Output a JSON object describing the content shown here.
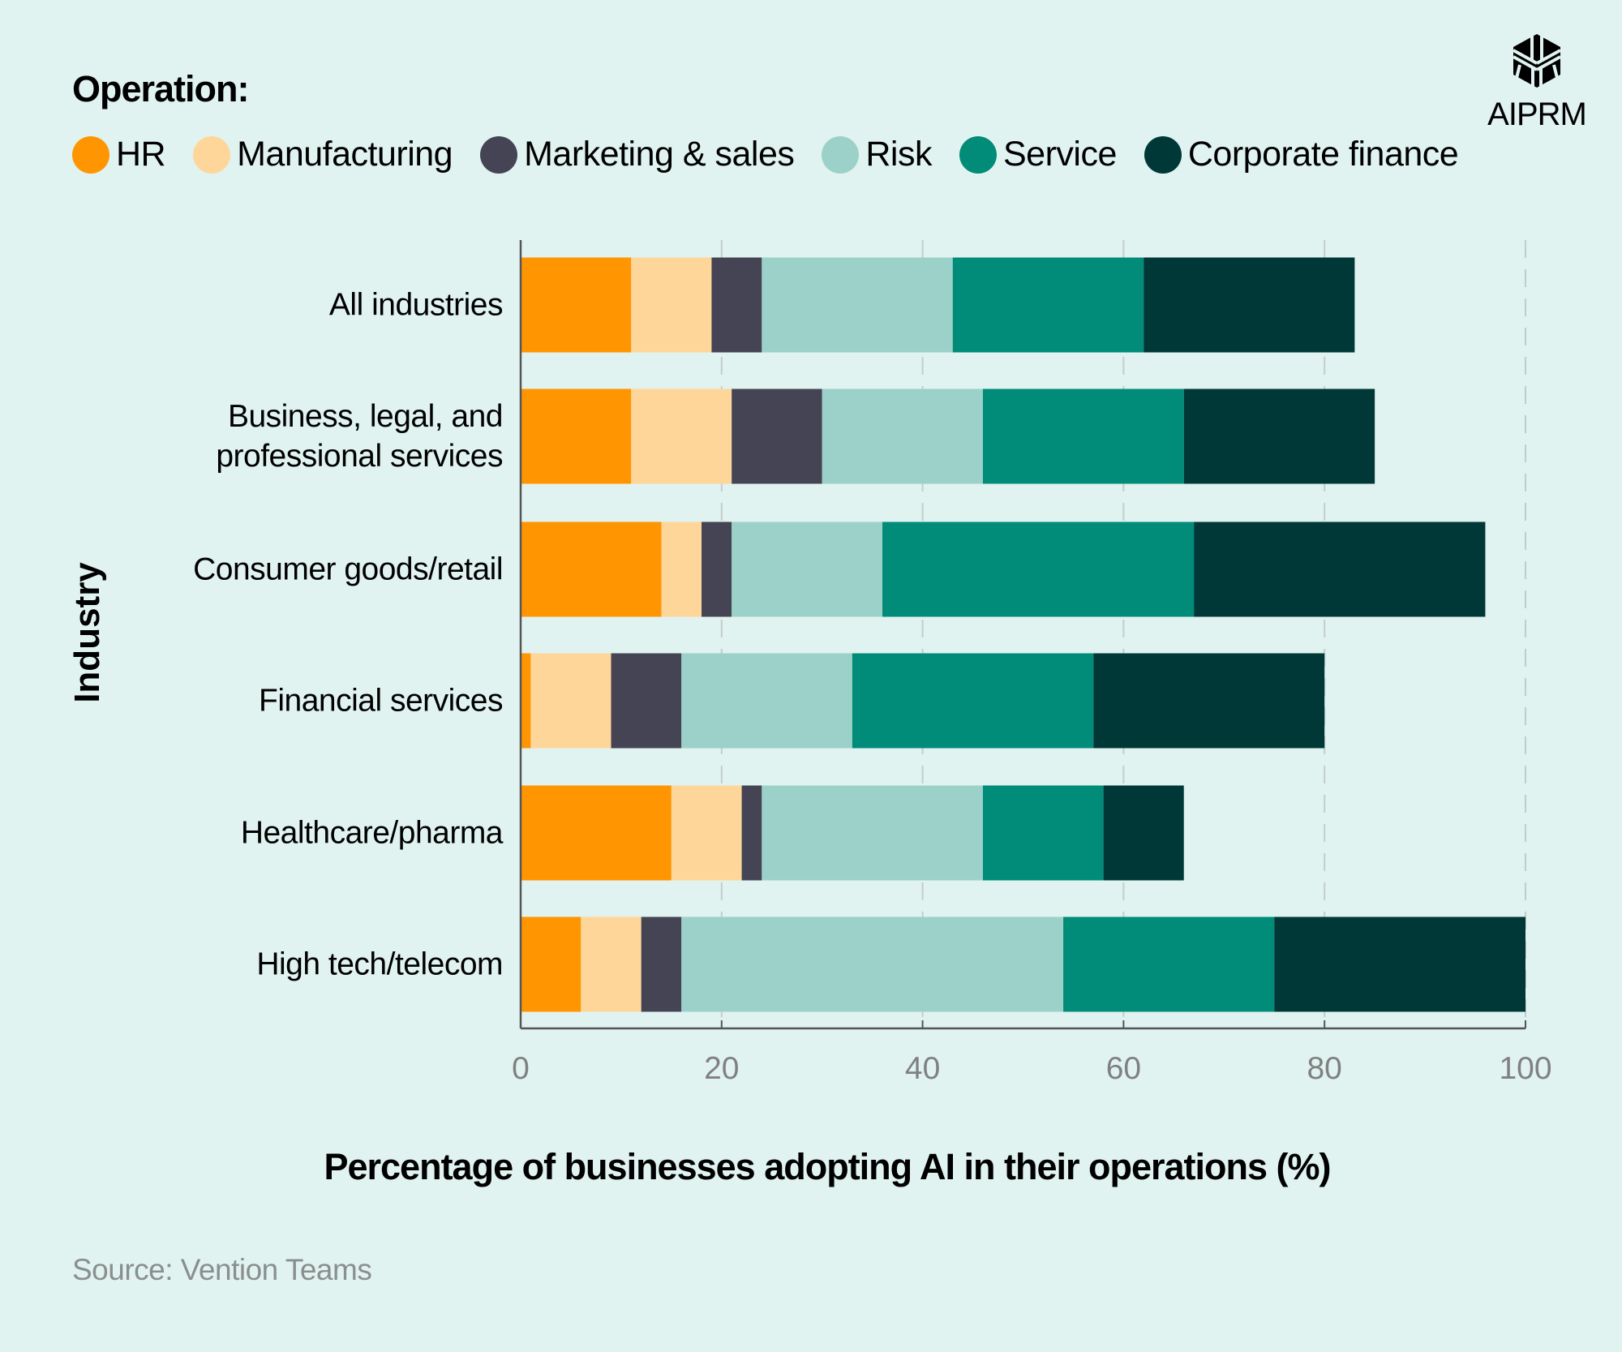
{
  "legend_title": "Operation:",
  "logo_text": "AIPRM",
  "source": "Source: Vention Teams",
  "chart_data": {
    "type": "bar",
    "orientation": "horizontal",
    "stacked": true,
    "xlabel": "Percentage of businesses adopting AI in their operations (%)",
    "ylabel": "Industry",
    "xlim": [
      0,
      100
    ],
    "xticks": [
      "0",
      "20",
      "40",
      "60",
      "80",
      "100"
    ],
    "grid": "vertical dashed",
    "legend_placement": "top",
    "categories": [
      "All industries",
      "Business, legal, and professional services",
      "Consumer goods/retail",
      "Financial services",
      "Healthcare/pharma",
      "High tech/telecom"
    ],
    "category_lines": [
      [
        "All industries"
      ],
      [
        "Business, legal, and",
        "professional services"
      ],
      [
        "Consumer goods/retail"
      ],
      [
        "Financial services"
      ],
      [
        "Healthcare/pharma"
      ],
      [
        "High tech/telecom"
      ]
    ],
    "series": [
      {
        "name": "HR",
        "color": "#ff9500",
        "values": [
          11,
          11,
          14,
          1,
          15,
          6
        ]
      },
      {
        "name": "Manufacturing",
        "color": "#ffd699",
        "values": [
          8,
          10,
          4,
          8,
          7,
          6
        ]
      },
      {
        "name": "Marketing & sales",
        "color": "#444455",
        "values": [
          5,
          9,
          3,
          7,
          2,
          4
        ]
      },
      {
        "name": "Risk",
        "color": "#9bd1c8",
        "values": [
          19,
          16,
          15,
          17,
          22,
          38
        ]
      },
      {
        "name": "Service",
        "color": "#008c78",
        "values": [
          19,
          20,
          31,
          24,
          12,
          21
        ]
      },
      {
        "name": "Corporate finance",
        "color": "#003838",
        "values": [
          21,
          19,
          29,
          23,
          8,
          25
        ]
      }
    ]
  }
}
